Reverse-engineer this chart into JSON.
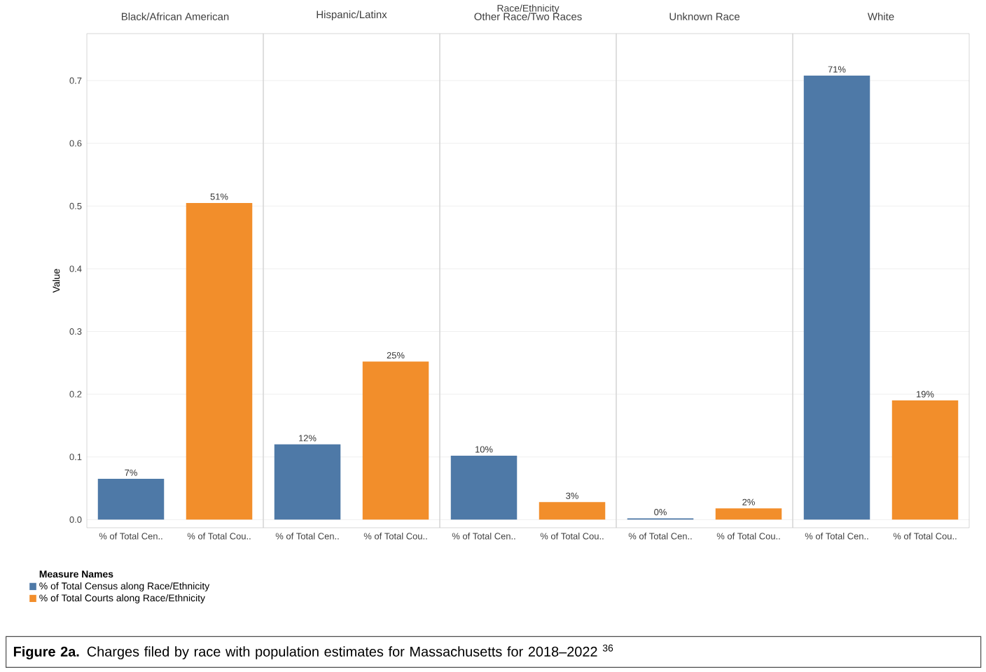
{
  "chart_data": [
    {
      "type": "bar",
      "title": "Black/African American",
      "ylabel": "Value",
      "legend_title": "Measure Names",
      "legend": "bottom left",
      "grid": "y",
      "annotations": [
        "Race/Ethnicity",
        "**Figure 2a.** Charges filed by race with population estimates for Massachusetts for 2018–2022 $^{36}$"
      ],
      "categories": [
        "% of Total Cen..",
        "% of Total Cou.."
      ],
      "ylim": [
        -0.013,
        0.775
      ],
      "yticks": [
        {
          "value": 0,
          "label": "0.0"
        },
        0.1,
        0.2,
        0.3,
        0.4,
        0.5,
        0.6,
        0.7
      ],
      "series": [
        {
          "name": "% of Total Census along Race/Ethnicity",
          "color": "#4e79a7",
          "values": [
            0.065,
            null
          ],
          "value_labels": [
            "7%",
            null
          ]
        },
        {
          "name": "% of Total Courts along Race/Ethnicity",
          "color": "#f28e2b",
          "values": [
            null,
            0.505
          ],
          "value_labels": [
            null,
            "51%"
          ]
        }
      ]
    },
    {
      "type": "bar",
      "title": "Hispanic/Latinx",
      "grid": "y",
      "tick_labels": "x",
      "categories": [
        "% of Total Cen..",
        "% of Total Cou.."
      ],
      "ylim": [
        -0.013,
        0.775
      ],
      "yticks": [
        0,
        0.1,
        0.2,
        0.3,
        0.4,
        0.5,
        0.6,
        0.7
      ],
      "series": [
        {
          "color": "#4e79a7",
          "values": [
            0.12,
            null
          ],
          "value_labels": [
            "12%",
            null
          ]
        },
        {
          "color": "#f28e2b",
          "values": [
            null,
            0.252
          ],
          "value_labels": [
            null,
            "25%"
          ]
        }
      ]
    },
    {
      "type": "bar",
      "title": "Other Race/Two Races",
      "grid": "y",
      "tick_labels": "x",
      "categories": [
        "% of Total Cen..",
        "% of Total Cou.."
      ],
      "ylim": [
        -0.013,
        0.775
      ],
      "yticks": [
        0,
        0.1,
        0.2,
        0.3,
        0.4,
        0.5,
        0.6,
        0.7
      ],
      "series": [
        {
          "color": "#4e79a7",
          "values": [
            0.102,
            null
          ],
          "value_labels": [
            "10%",
            null
          ]
        },
        {
          "color": "#f28e2b",
          "values": [
            null,
            0.028
          ],
          "value_labels": [
            null,
            "3%"
          ]
        }
      ]
    },
    {
      "type": "bar",
      "title": "Unknown Race",
      "grid": "y",
      "tick_labels": "x",
      "categories": [
        "% of Total Cen..",
        "% of Total Cou.."
      ],
      "ylim": [
        -0.013,
        0.775
      ],
      "yticks": [
        0,
        0.1,
        0.2,
        0.3,
        0.4,
        0.5,
        0.6,
        0.7
      ],
      "series": [
        {
          "color": "#4e79a7",
          "values": [
            0.002,
            null
          ],
          "value_labels": [
            "0%",
            null
          ]
        },
        {
          "color": "#f28e2b",
          "values": [
            null,
            0.018
          ],
          "value_labels": [
            null,
            "2%"
          ]
        }
      ]
    },
    {
      "type": "bar",
      "title": "White",
      "grid": "y",
      "tick_labels": "x",
      "categories": [
        "% of Total Cen..",
        "% of Total Cou.."
      ],
      "ylim": [
        -0.013,
        0.775
      ],
      "yticks": [
        0,
        0.1,
        0.2,
        0.3,
        0.4,
        0.5,
        0.6,
        0.7
      ],
      "series": [
        {
          "color": "#4e79a7",
          "values": [
            0.708,
            null
          ],
          "value_labels": [
            "71%",
            null
          ]
        },
        {
          "color": "#f28e2b",
          "values": [
            null,
            0.19
          ],
          "value_labels": [
            null,
            "19%"
          ]
        }
      ]
    }
  ]
}
